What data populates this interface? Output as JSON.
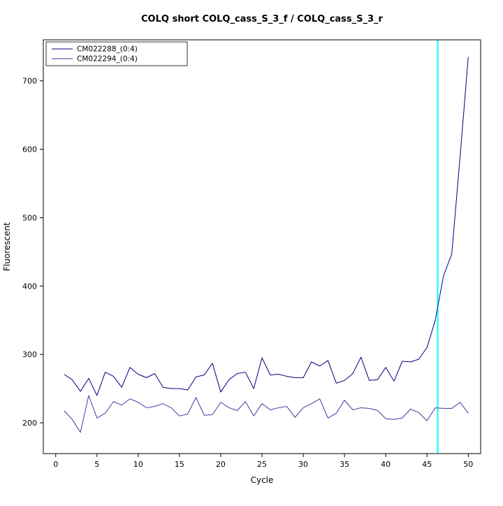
{
  "chart_data": {
    "type": "line",
    "title": "COLQ short COLQ_cass_S_3_f / COLQ_cass_S_3_r",
    "xlabel": "Cycle",
    "ylabel": "Fluorescent",
    "xlim": [
      -1.5,
      51.5
    ],
    "ylim": [
      155,
      760
    ],
    "x_ticks": [
      0,
      5,
      10,
      15,
      20,
      25,
      30,
      35,
      40,
      45,
      50
    ],
    "y_ticks": [
      200,
      300,
      400,
      500,
      600,
      700
    ],
    "grid": false,
    "legend_position": "top-left",
    "threshold_line": {
      "x": 46.3,
      "color": "#00ffff"
    },
    "x": [
      1,
      2,
      3,
      4,
      5,
      6,
      7,
      8,
      9,
      10,
      11,
      12,
      13,
      14,
      15,
      16,
      17,
      18,
      19,
      20,
      21,
      22,
      23,
      24,
      25,
      26,
      27,
      28,
      29,
      30,
      31,
      32,
      33,
      34,
      35,
      36,
      37,
      38,
      39,
      40,
      41,
      42,
      43,
      44,
      45,
      46,
      47,
      48,
      49,
      50
    ],
    "series": [
      {
        "name": "CM022288_(0:4)",
        "color": "#000080",
        "values": [
          271,
          263,
          246,
          265,
          240,
          274,
          268,
          252,
          281,
          271,
          266,
          272,
          252,
          250,
          250,
          248,
          267,
          270,
          287,
          245,
          263,
          272,
          274,
          250,
          295,
          270,
          271,
          268,
          266,
          266,
          289,
          283,
          291,
          258,
          262,
          272,
          296,
          262,
          263,
          281,
          261,
          290,
          289,
          293,
          310,
          350,
          415,
          447,
          588,
          735
        ]
      },
      {
        "name": "CM022294_(0:4)",
        "color": "#3c3c9e",
        "values": [
          218,
          205,
          186,
          240,
          207,
          214,
          231,
          226,
          235,
          230,
          222,
          224,
          228,
          222,
          210,
          213,
          237,
          211,
          212,
          230,
          222,
          218,
          231,
          210,
          228,
          219,
          222,
          224,
          208,
          222,
          228,
          235,
          207,
          214,
          233,
          219,
          222,
          221,
          218,
          206,
          205,
          207,
          220,
          215,
          203,
          222,
          221,
          221,
          230,
          214
        ]
      }
    ]
  }
}
